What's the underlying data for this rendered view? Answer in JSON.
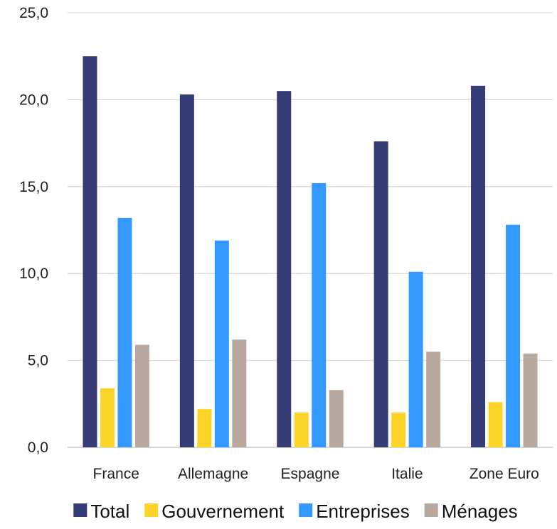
{
  "chart_data": {
    "type": "bar",
    "categories": [
      "France",
      "Allemagne",
      "Espagne",
      "Italie",
      "Zone Euro"
    ],
    "series": [
      {
        "name": "Total",
        "color": "#353B74",
        "values": [
          22.5,
          20.3,
          20.5,
          17.6,
          20.8
        ]
      },
      {
        "name": "Gouvernement",
        "color": "#FDD42A",
        "values": [
          3.4,
          2.2,
          2.0,
          2.0,
          2.6
        ]
      },
      {
        "name": "Entreprises",
        "color": "#3399FF",
        "values": [
          13.2,
          11.9,
          15.2,
          10.1,
          12.8
        ]
      },
      {
        "name": "Ménages",
        "color": "#B8A9A0",
        "values": [
          5.9,
          6.2,
          3.3,
          5.5,
          5.4
        ]
      }
    ],
    "y_ticks": [
      "0,0",
      "5,0",
      "10,0",
      "15,0",
      "20,0",
      "25,0"
    ],
    "ylim": [
      0,
      25
    ],
    "grid": true,
    "legend_position": "bottom",
    "title": "",
    "xlabel": "",
    "ylabel": ""
  }
}
